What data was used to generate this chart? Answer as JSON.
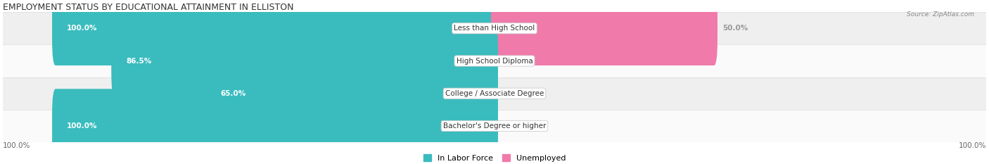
{
  "title": "EMPLOYMENT STATUS BY EDUCATIONAL ATTAINMENT IN ELLISTON",
  "source": "Source: ZipAtlas.com",
  "categories": [
    "Less than High School",
    "High School Diploma",
    "College / Associate Degree",
    "Bachelor's Degree or higher"
  ],
  "labor_force_values": [
    100.0,
    86.5,
    65.0,
    100.0
  ],
  "unemployed_values": [
    50.0,
    0.0,
    0.0,
    0.0
  ],
  "labor_force_color": "#3abcbe",
  "unemployed_color": "#f07aaa",
  "row_bg_colors": [
    "#efefef",
    "#fafafa",
    "#efefef",
    "#fafafa"
  ],
  "label_color_left": "#ffffff",
  "label_color_right": "#999999",
  "x_min": -100,
  "x_max": 100,
  "left_axis_label": "100.0%",
  "right_axis_label": "100.0%",
  "legend_labor": "In Labor Force",
  "legend_unemployed": "Unemployed",
  "title_fontsize": 9,
  "label_fontsize": 7.5,
  "category_fontsize": 7.5,
  "legend_fontsize": 8
}
